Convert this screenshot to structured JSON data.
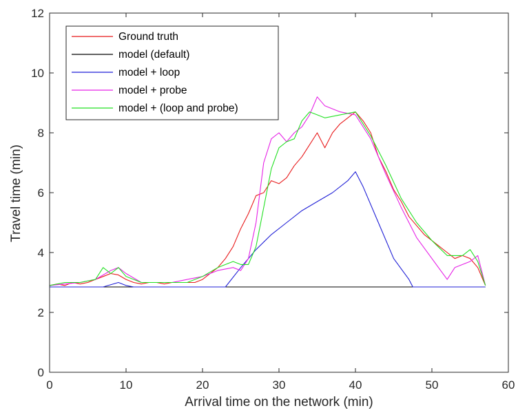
{
  "chart_data": {
    "type": "line",
    "title": "",
    "xlabel": "Arrival time on the network (min)",
    "ylabel": "Travel time (min)",
    "xlim": [
      0,
      60
    ],
    "ylim": [
      0,
      12
    ],
    "xticks": [
      0,
      10,
      20,
      30,
      40,
      50,
      60
    ],
    "yticks": [
      0,
      2,
      4,
      6,
      8,
      10,
      12
    ],
    "grid": false,
    "legend_position": "top-left",
    "series": [
      {
        "name": "Ground truth",
        "color": "#e8191a",
        "x": [
          0,
          1,
          2,
          3,
          4,
          5,
          6,
          7,
          8,
          9,
          10,
          11,
          12,
          13,
          14,
          15,
          16,
          17,
          18,
          19,
          20,
          21,
          22,
          23,
          24,
          25,
          26,
          27,
          28,
          29,
          30,
          31,
          32,
          33,
          34,
          35,
          36,
          37,
          38,
          39,
          40,
          41,
          42,
          43,
          44,
          45,
          46,
          47,
          48,
          49,
          50,
          51,
          52,
          53,
          54,
          55,
          56,
          57
        ],
        "y": [
          2.9,
          2.95,
          2.9,
          3.0,
          2.95,
          3.0,
          3.1,
          3.2,
          3.3,
          3.25,
          3.1,
          3.0,
          2.95,
          3.0,
          3.0,
          2.95,
          3.0,
          3.0,
          3.0,
          3.0,
          3.1,
          3.3,
          3.5,
          3.8,
          4.2,
          4.8,
          5.3,
          5.9,
          6.0,
          6.4,
          6.3,
          6.5,
          6.9,
          7.2,
          7.6,
          8.0,
          7.5,
          8.0,
          8.3,
          8.5,
          8.7,
          8.4,
          8.0,
          7.2,
          6.7,
          6.1,
          5.7,
          5.2,
          4.9,
          4.6,
          4.4,
          4.2,
          4.0,
          3.8,
          3.9,
          3.8,
          3.5,
          2.9
        ]
      },
      {
        "name": "model (default)",
        "color": "#000000",
        "x": [
          0,
          57
        ],
        "y": [
          2.85,
          2.85
        ]
      },
      {
        "name": "model + loop",
        "color": "#1f1fd6",
        "x": [
          0,
          7,
          9,
          10,
          11,
          23,
          25,
          27,
          29,
          31,
          33,
          35,
          37,
          39,
          40,
          41,
          43,
          45,
          47,
          47.5,
          57
        ],
        "y": [
          2.85,
          2.85,
          3.0,
          2.9,
          2.85,
          2.85,
          3.5,
          4.1,
          4.6,
          5.0,
          5.4,
          5.7,
          6.0,
          6.4,
          6.7,
          6.2,
          5.0,
          3.8,
          3.1,
          2.85,
          2.85
        ]
      },
      {
        "name": "model + probe",
        "color": "#e621e6",
        "x": [
          0,
          2,
          4,
          6,
          8,
          9,
          10,
          12,
          14,
          16,
          18,
          20,
          22,
          24,
          25,
          26,
          27,
          28,
          29,
          30,
          31,
          32,
          33,
          34,
          35,
          36,
          38,
          40,
          42,
          44,
          46,
          48,
          50,
          52,
          53,
          55,
          56,
          57
        ],
        "y": [
          2.9,
          2.95,
          3.0,
          3.1,
          3.4,
          3.5,
          3.3,
          3.0,
          3.0,
          3.0,
          3.1,
          3.2,
          3.4,
          3.5,
          3.4,
          3.8,
          5.0,
          7.0,
          7.8,
          8.0,
          7.7,
          8.0,
          8.2,
          8.6,
          9.2,
          8.9,
          8.7,
          8.6,
          7.8,
          6.6,
          5.5,
          4.5,
          3.8,
          3.1,
          3.5,
          3.7,
          3.9,
          2.9
        ]
      },
      {
        "name": "model + (loop and probe)",
        "color": "#21e021",
        "x": [
          0,
          2,
          4,
          6,
          7,
          8,
          9,
          10,
          12,
          14,
          16,
          18,
          20,
          22,
          24,
          25,
          26,
          27,
          28,
          29,
          30,
          31,
          32,
          33,
          34,
          35,
          36,
          38,
          40,
          42,
          44,
          46,
          48,
          50,
          52,
          54,
          55,
          56,
          57
        ],
        "y": [
          2.9,
          3.0,
          3.0,
          3.1,
          3.5,
          3.3,
          3.5,
          3.2,
          3.0,
          3.0,
          3.0,
          3.0,
          3.2,
          3.5,
          3.7,
          3.6,
          3.6,
          4.2,
          5.5,
          6.8,
          7.5,
          7.7,
          7.8,
          8.4,
          8.7,
          8.6,
          8.5,
          8.6,
          8.7,
          7.9,
          6.9,
          5.8,
          5.0,
          4.4,
          3.9,
          3.9,
          4.1,
          3.7,
          2.9
        ]
      }
    ]
  }
}
